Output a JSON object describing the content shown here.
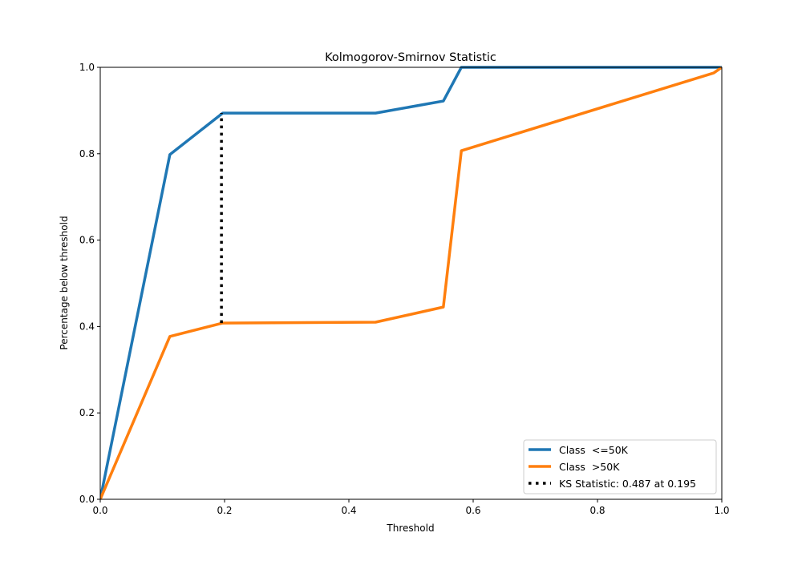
{
  "chart_data": {
    "type": "line",
    "title": "Kolmogorov-Smirnov Statistic",
    "xlabel": "Threshold",
    "ylabel": "Percentage below threshold",
    "xlim": [
      0,
      1
    ],
    "ylim": [
      0,
      1
    ],
    "xticks": [
      "0.0",
      "0.2",
      "0.4",
      "0.6",
      "0.8",
      "1.0"
    ],
    "yticks": [
      "0.0",
      "0.2",
      "0.4",
      "0.6",
      "0.8",
      "1.0"
    ],
    "grid": false,
    "legend_position": "lower-right",
    "series": [
      {
        "name": "Class  <=50K",
        "color": "#1f77b4",
        "x": [
          0.0,
          0.112,
          0.197,
          0.443,
          0.552,
          0.581,
          1.0
        ],
        "y": [
          0.0,
          0.798,
          0.894,
          0.894,
          0.922,
          1.0,
          1.0
        ]
      },
      {
        "name": "Class  >50K",
        "color": "#ff7f0e",
        "x": [
          0.0,
          0.112,
          0.197,
          0.443,
          0.552,
          0.581,
          0.987,
          1.0
        ],
        "y": [
          0.0,
          0.377,
          0.408,
          0.41,
          0.445,
          0.807,
          0.987,
          1.0
        ]
      }
    ],
    "ks_line": {
      "name": "KS Statistic: 0.487 at 0.195",
      "color": "#000000",
      "style": "dotted",
      "x": 0.195,
      "y_range": [
        0.408,
        0.894
      ]
    }
  }
}
